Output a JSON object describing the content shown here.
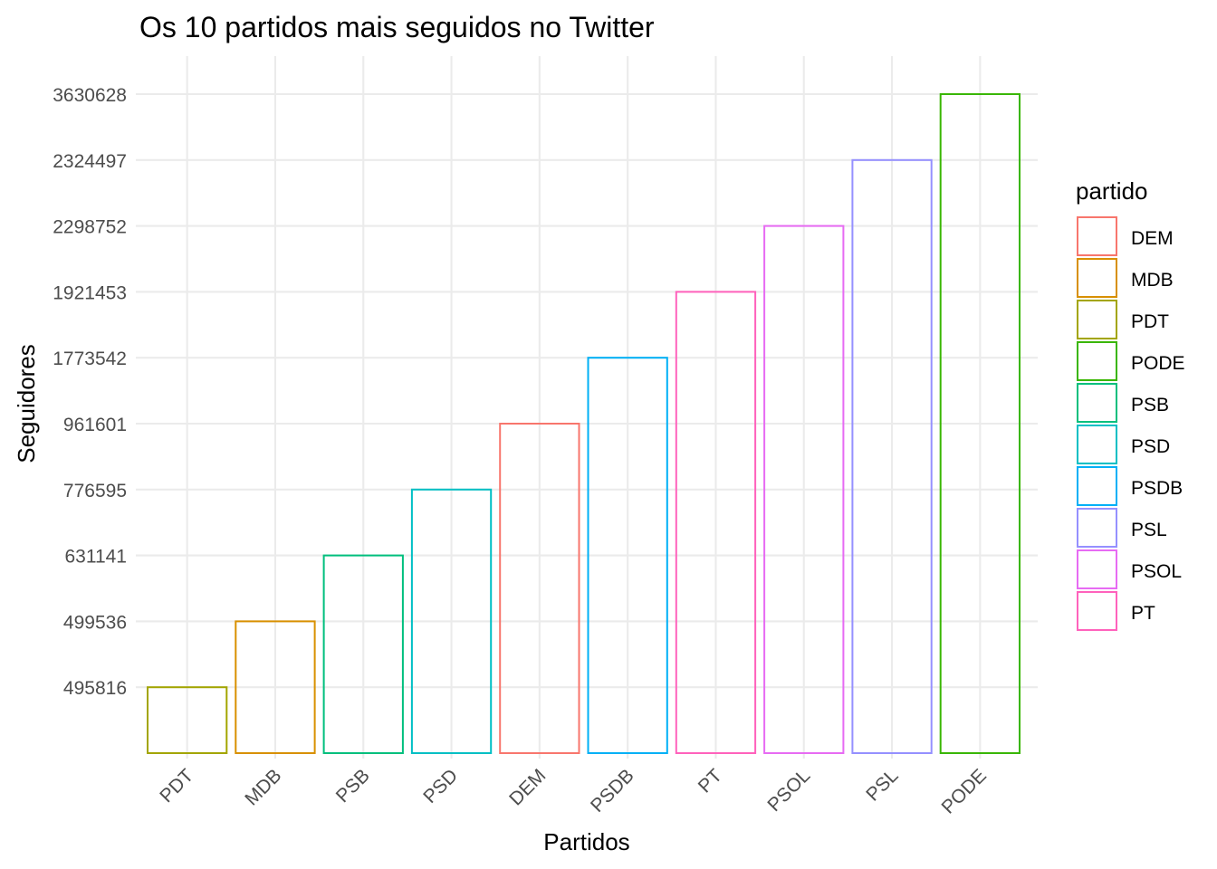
{
  "chart_data": {
    "type": "bar",
    "title": "Os 10 partidos mais seguidos no Twitter",
    "xlabel": "Partidos",
    "ylabel": "Seguidores",
    "y_axis_note": "discrete y axis: each tick is one party's follower count, ordered ascending",
    "categories": [
      "PDT",
      "MDB",
      "PSB",
      "PSD",
      "DEM",
      "PSDB",
      "PT",
      "PSOL",
      "PSL",
      "PODE"
    ],
    "values": [
      495816,
      499536,
      631141,
      776595,
      961601,
      1773542,
      1921453,
      2298752,
      2324497,
      3630628
    ],
    "y_ticks": [
      "495816",
      "499536",
      "631141",
      "776595",
      "961601",
      "1773542",
      "1921453",
      "2298752",
      "2324497",
      "3630628"
    ],
    "bar_fill": "none",
    "grid": true,
    "legend": {
      "title": "partido",
      "position": "right",
      "entries": [
        {
          "label": "DEM",
          "color": "#F8766D"
        },
        {
          "label": "MDB",
          "color": "#D89000"
        },
        {
          "label": "PDT",
          "color": "#A3A500"
        },
        {
          "label": "PODE",
          "color": "#39B600"
        },
        {
          "label": "PSB",
          "color": "#00BF7D"
        },
        {
          "label": "PSD",
          "color": "#00BFC4"
        },
        {
          "label": "PSDB",
          "color": "#00B0F6"
        },
        {
          "label": "PSL",
          "color": "#9590FF"
        },
        {
          "label": "PSOL",
          "color": "#E76BF3"
        },
        {
          "label": "PT",
          "color": "#FF62BC"
        }
      ]
    }
  }
}
